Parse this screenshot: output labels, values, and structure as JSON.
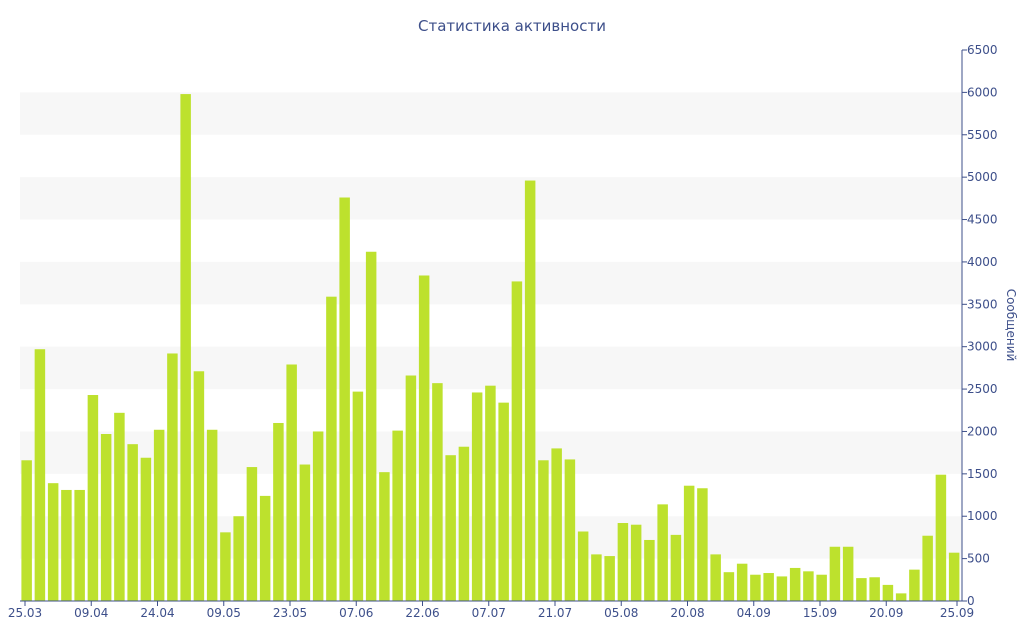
{
  "chart_data": {
    "type": "bar",
    "title": "Статистика активности",
    "ylabel": "Сообщений",
    "xlabel": "",
    "ylim": [
      0,
      6500
    ],
    "yticks": [
      0,
      500,
      1000,
      1500,
      2000,
      2500,
      3000,
      3500,
      4000,
      4500,
      5000,
      5500,
      6000,
      6500
    ],
    "y_axis_position": "right",
    "grid": "alternating horizontal bands",
    "bar_color": "#bde12d",
    "text_color": "#3d4f8a",
    "band_color": "#f7f7f7",
    "x_tick_labels": [
      {
        "label": "25.03",
        "index": 0
      },
      {
        "label": "09.04",
        "index": 5
      },
      {
        "label": "24.04",
        "index": 10
      },
      {
        "label": "09.05",
        "index": 15
      },
      {
        "label": "23.05",
        "index": 20
      },
      {
        "label": "07.06",
        "index": 25
      },
      {
        "label": "22.06",
        "index": 30
      },
      {
        "label": "07.07",
        "index": 35
      },
      {
        "label": "21.07",
        "index": 40
      },
      {
        "label": "05.08",
        "index": 45
      },
      {
        "label": "20.08",
        "index": 50
      },
      {
        "label": "04.09",
        "index": 55
      },
      {
        "label": "15.09",
        "index": 60
      },
      {
        "label": "20.09",
        "index": 65
      },
      {
        "label": "25.09",
        "index": 70
      }
    ],
    "values": [
      1660,
      2970,
      1390,
      1310,
      1310,
      2430,
      1970,
      2220,
      1850,
      1690,
      2020,
      2920,
      5980,
      2710,
      2020,
      810,
      1000,
      1580,
      1240,
      2100,
      2790,
      1610,
      2000,
      3590,
      4760,
      2470,
      4120,
      1520,
      2010,
      2660,
      3840,
      2570,
      1720,
      1820,
      2460,
      2540,
      2340,
      3770,
      4960,
      1660,
      1800,
      1670,
      820,
      550,
      530,
      920,
      900,
      720,
      1140,
      780,
      1360,
      1330,
      550,
      340,
      440,
      310,
      330,
      290,
      390,
      350,
      310,
      640,
      640,
      270,
      280,
      190,
      90,
      370,
      770,
      1490,
      570
    ]
  }
}
